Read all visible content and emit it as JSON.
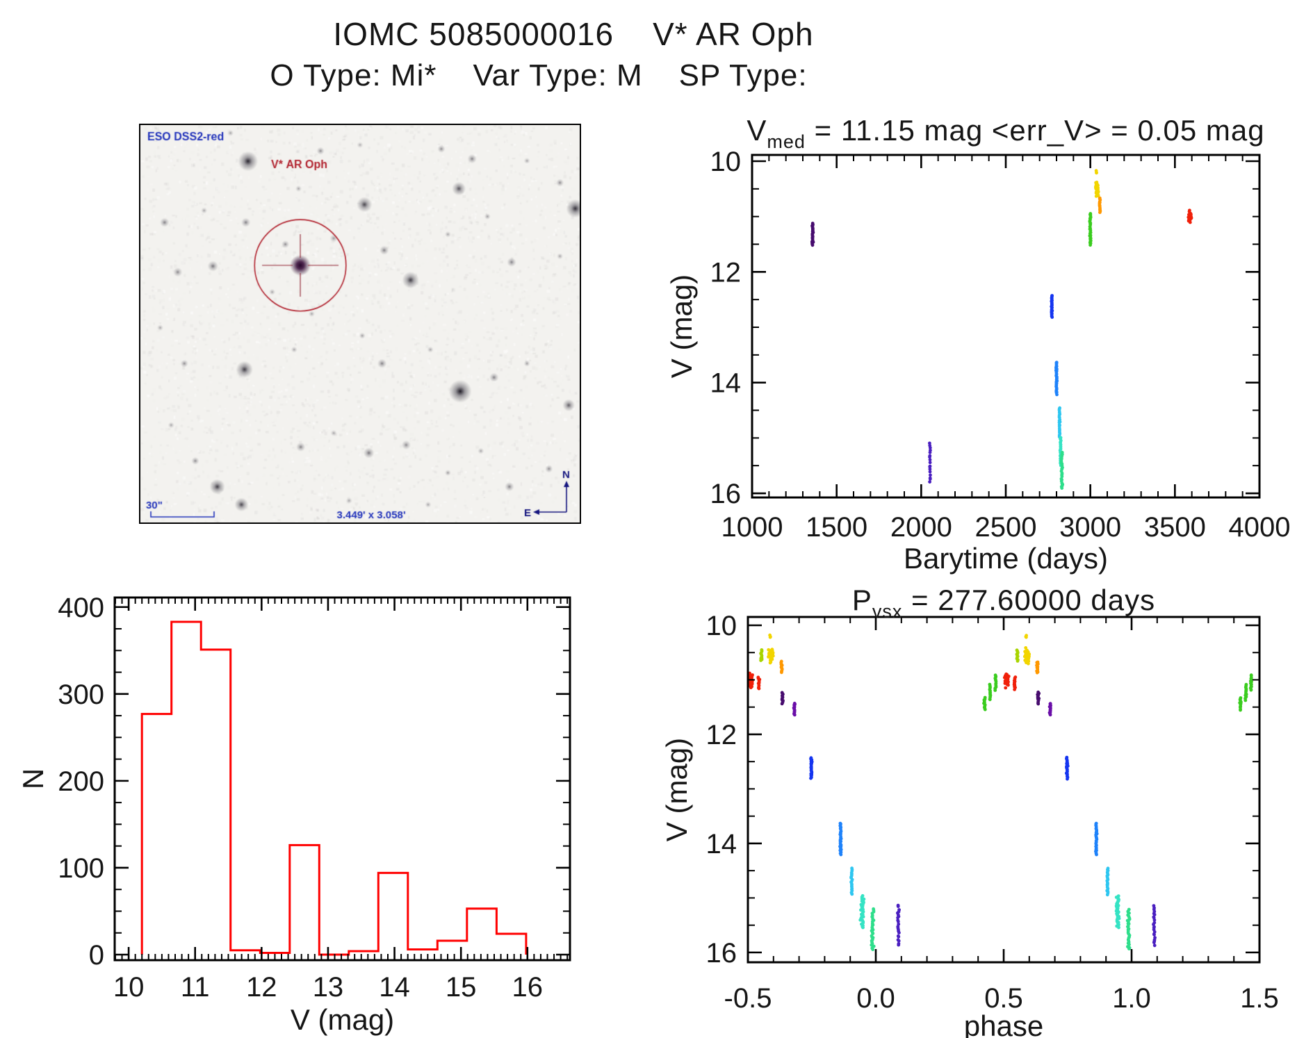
{
  "header": {
    "title_left": "IOMC 5085000016",
    "title_right": "V* AR Oph",
    "subtitle_segments": [
      "O Type: Mi*",
      "Var Type: M",
      "SP Type:"
    ]
  },
  "sky_image": {
    "survey_label": "ESO DSS2-red",
    "target_label": "V* AR Oph",
    "scale_label": "30\"",
    "fov_label": "3.449' x 3.058'",
    "compass_north": "N",
    "compass_east": "E",
    "annotation_blue": "#2233BB",
    "annotation_red": "#B22430",
    "compass_navy": "#15157F",
    "circle": {
      "fx": 0.364,
      "fy": 0.353,
      "fr_of_height": 0.115
    },
    "stars": [
      [
        0.245,
        0.091,
        6.5,
        0.95
      ],
      [
        0.205,
        0.02,
        2,
        0.4
      ],
      [
        0.41,
        0.065,
        2.5,
        0.5
      ],
      [
        0.5,
        0.05,
        2,
        0.35
      ],
      [
        0.685,
        0.06,
        2.5,
        0.5
      ],
      [
        0.755,
        0.085,
        3,
        0.55
      ],
      [
        0.725,
        0.16,
        4.5,
        0.75
      ],
      [
        0.88,
        0.09,
        2,
        0.4
      ],
      [
        0.955,
        0.145,
        2.5,
        0.5
      ],
      [
        0.99,
        0.21,
        6,
        0.9
      ],
      [
        0.055,
        0.245,
        3,
        0.55
      ],
      [
        0.085,
        0.37,
        3,
        0.5
      ],
      [
        0.145,
        0.215,
        2,
        0.4
      ],
      [
        0.165,
        0.355,
        3.5,
        0.6
      ],
      [
        0.24,
        0.245,
        3,
        0.55
      ],
      [
        0.51,
        0.2,
        5,
        0.8
      ],
      [
        0.555,
        0.315,
        3,
        0.55
      ],
      [
        0.615,
        0.39,
        5.5,
        0.85
      ],
      [
        0.7,
        0.275,
        2,
        0.4
      ],
      [
        0.79,
        0.23,
        2,
        0.45
      ],
      [
        0.845,
        0.345,
        3,
        0.55
      ],
      [
        0.955,
        0.33,
        2,
        0.4
      ],
      [
        0.36,
        0.16,
        2,
        0.4
      ],
      [
        0.44,
        0.285,
        2.5,
        0.45
      ],
      [
        0.33,
        0.3,
        2.5,
        0.5
      ],
      [
        0.3,
        0.42,
        2,
        0.4
      ],
      [
        0.39,
        0.475,
        2,
        0.4
      ],
      [
        0.045,
        0.51,
        2,
        0.4
      ],
      [
        0.1,
        0.6,
        2.5,
        0.5
      ],
      [
        0.237,
        0.615,
        5.5,
        0.85
      ],
      [
        0.35,
        0.565,
        2,
        0.4
      ],
      [
        0.505,
        0.53,
        2,
        0.45
      ],
      [
        0.55,
        0.6,
        3,
        0.55
      ],
      [
        0.66,
        0.565,
        2,
        0.4
      ],
      [
        0.728,
        0.67,
        7.5,
        1
      ],
      [
        0.805,
        0.635,
        3,
        0.55
      ],
      [
        0.88,
        0.6,
        2,
        0.45
      ],
      [
        0.975,
        0.705,
        4,
        0.7
      ],
      [
        0.07,
        0.755,
        2,
        0.4
      ],
      [
        0.125,
        0.845,
        2.5,
        0.5
      ],
      [
        0.175,
        0.91,
        5,
        0.85
      ],
      [
        0.23,
        0.955,
        4.5,
        0.8
      ],
      [
        0.365,
        0.81,
        3,
        0.55
      ],
      [
        0.44,
        0.775,
        2,
        0.4
      ],
      [
        0.52,
        0.825,
        3.5,
        0.6
      ],
      [
        0.605,
        0.805,
        3,
        0.5
      ],
      [
        0.7,
        0.875,
        2,
        0.45
      ],
      [
        0.775,
        0.82,
        2,
        0.4
      ],
      [
        0.84,
        0.91,
        3,
        0.55
      ],
      [
        0.93,
        0.865,
        2.5,
        0.5
      ],
      [
        0.655,
        0.955,
        2,
        0.4
      ],
      [
        0.475,
        0.945,
        2,
        0.4
      ]
    ]
  },
  "chart_data": [
    {
      "id": "barytime",
      "type": "scatter",
      "title": "V_med = 11.15 mag <err_V> = 0.05 mag",
      "title_parts": {
        "pre": "V",
        "sub": "med",
        "rest": " = 11.15 mag <err_V> = 0.05 mag"
      },
      "xlabel": "Barytime (days)",
      "ylabel": "V (mag)",
      "xlim": [
        1000,
        4000
      ],
      "ylim": [
        10,
        16
      ],
      "y_inverted": true,
      "xticks": [
        1000,
        1500,
        2000,
        2500,
        3000,
        3500,
        4000
      ],
      "xtick_labels": [
        "1000",
        "1500",
        "2000",
        "2500",
        "3000",
        "3500",
        "4000"
      ],
      "yticks": [
        10,
        12,
        14,
        16
      ],
      "ytick_labels": [
        "10",
        "12",
        "14",
        "16"
      ],
      "x_minor": 100,
      "y_minor": 0.5,
      "grid": false,
      "legend": "none",
      "clusters": [
        {
          "x": 1358,
          "xs": 4,
          "v": [
            11.12,
            11.52
          ],
          "n": 26,
          "color": "#470C6E",
          "seed": 1
        },
        {
          "x": 2052,
          "xs": 3,
          "v": [
            15.08,
            15.82
          ],
          "n": 17,
          "color": "#4A1FC0",
          "seed": 2
        },
        {
          "x": 2772,
          "xs": 3,
          "v": [
            12.42,
            12.82
          ],
          "n": 26,
          "color": "#1535F0",
          "seed": 3
        },
        {
          "x": 2800,
          "xs": 3,
          "v": [
            13.62,
            14.22
          ],
          "n": 32,
          "color": "#1E82FA",
          "seed": 4
        },
        {
          "x": 2818,
          "xs": 3,
          "v": [
            14.45,
            14.99
          ],
          "n": 24,
          "color": "#2EC6F0",
          "seed": 5
        },
        {
          "x": 2824,
          "xs": 3,
          "v": [
            14.98,
            15.5
          ],
          "n": 26,
          "color": "#35E3C4",
          "seed": 6
        },
        {
          "x": 2832,
          "xs": 4,
          "v": [
            15.25,
            15.93
          ],
          "n": 26,
          "color": "#2EDE8B",
          "seed": 7
        },
        {
          "x": 3000,
          "xs": 4,
          "v": [
            10.93,
            11.52
          ],
          "n": 30,
          "color": "#3ACC1E",
          "seed": 8
        },
        {
          "x": 3040,
          "xs": 6,
          "v": [
            10.32,
            10.72
          ],
          "n": 38,
          "color": "#F2D500",
          "seed": 9,
          "blob": true
        },
        {
          "x": 3036,
          "xs": 2,
          "v": [
            10.17,
            10.23
          ],
          "n": 3,
          "color": "#F2D500",
          "seed": 10
        },
        {
          "x": 3056,
          "xs": 3,
          "v": [
            10.66,
            10.93
          ],
          "n": 14,
          "color": "#FF9800",
          "seed": 11
        },
        {
          "x": 3590,
          "xs": 7,
          "v": [
            10.88,
            11.12
          ],
          "n": 36,
          "color": "#F0200A",
          "seed": 12,
          "blob": true
        }
      ]
    },
    {
      "id": "hist",
      "type": "bar",
      "title": "",
      "xlabel": "V (mag)",
      "ylabel": "N",
      "xlim": [
        10,
        16
      ],
      "ylim": [
        0,
        400
      ],
      "xticks": [
        10,
        11,
        12,
        13,
        14,
        15,
        16
      ],
      "xtick_labels": [
        "10",
        "11",
        "12",
        "13",
        "14",
        "15",
        "16"
      ],
      "yticks": [
        0,
        100,
        200,
        300,
        400
      ],
      "ytick_labels": [
        "0",
        "100",
        "200",
        "300",
        "400"
      ],
      "x_minor": 0.1,
      "y_minor": 25,
      "grid": false,
      "legend": "none",
      "bin_start": 10.2,
      "bin_width": 0.4446,
      "values": [
        277,
        383,
        351,
        5,
        2,
        126,
        0,
        4,
        94,
        6,
        16,
        53,
        24
      ],
      "color": "#FF0000"
    },
    {
      "id": "phase",
      "type": "scatter",
      "title": "P_vsx = 277.60000 days",
      "title_parts": {
        "pre": "P",
        "sub": "vsx",
        "rest": " = 277.60000 days"
      },
      "xlabel": "phase",
      "ylabel": "V (mag)",
      "xlim": [
        -0.5,
        1.5
      ],
      "ylim": [
        10,
        16
      ],
      "y_inverted": true,
      "xticks": [
        -0.5,
        0.0,
        0.5,
        1.0,
        1.5
      ],
      "xtick_labels": [
        "-0.5",
        "0.0",
        "0.5",
        "1.0",
        "1.5"
      ],
      "yticks": [
        10,
        12,
        14,
        16
      ],
      "ytick_labels": [
        "10",
        "12",
        "14",
        "16"
      ],
      "x_minor": 0.1,
      "y_minor": 0.5,
      "grid": false,
      "legend": "none",
      "fold_copies": [
        0,
        1,
        2
      ],
      "clusters": [
        {
          "x": -0.488,
          "xs": 0.006,
          "v": [
            10.86,
            11.18
          ],
          "n": 40,
          "color": "#F0200A",
          "seed": 21,
          "blob": true
        },
        {
          "x": -0.457,
          "xs": 0.003,
          "v": [
            10.95,
            11.18
          ],
          "n": 12,
          "color": "#F0200A",
          "seed": 22
        },
        {
          "x": -0.447,
          "xs": 0.003,
          "v": [
            10.44,
            10.66
          ],
          "n": 12,
          "color": "#A8D400",
          "seed": 23
        },
        {
          "x": -0.41,
          "xs": 0.007,
          "v": [
            10.38,
            10.72
          ],
          "n": 38,
          "color": "#F2D500",
          "seed": 24,
          "blob": true
        },
        {
          "x": -0.413,
          "xs": 0.002,
          "v": [
            10.18,
            10.23
          ],
          "n": 3,
          "color": "#F2D500",
          "seed": 25
        },
        {
          "x": -0.368,
          "xs": 0.003,
          "v": [
            10.66,
            10.88
          ],
          "n": 12,
          "color": "#FF9800",
          "seed": 26
        },
        {
          "x": -0.365,
          "xs": 0.003,
          "v": [
            11.22,
            11.45
          ],
          "n": 13,
          "color": "#470C6E",
          "seed": 27
        },
        {
          "x": -0.318,
          "xs": 0.003,
          "v": [
            11.42,
            11.65
          ],
          "n": 13,
          "color": "#6A0FA8",
          "seed": 28
        },
        {
          "x": 0.425,
          "xs": 0.003,
          "v": [
            11.32,
            11.56
          ],
          "n": 13,
          "color": "#3ACC1E",
          "seed": 29
        },
        {
          "x": 0.447,
          "xs": 0.003,
          "v": [
            11.08,
            11.38
          ],
          "n": 14,
          "color": "#3ACC1E",
          "seed": 30
        },
        {
          "x": 0.468,
          "xs": 0.003,
          "v": [
            10.9,
            11.2
          ],
          "n": 14,
          "color": "#3ACC1E",
          "seed": 31
        },
        {
          "x": -0.252,
          "xs": 0.003,
          "v": [
            12.42,
            12.82
          ],
          "n": 24,
          "color": "#1535F0",
          "seed": 32
        },
        {
          "x": -0.138,
          "xs": 0.003,
          "v": [
            13.62,
            14.22
          ],
          "n": 30,
          "color": "#1E82FA",
          "seed": 33
        },
        {
          "x": -0.094,
          "xs": 0.003,
          "v": [
            14.45,
            14.95
          ],
          "n": 22,
          "color": "#2EC6F0",
          "seed": 34
        },
        {
          "x": -0.053,
          "xs": 0.008,
          "v": [
            14.95,
            15.55
          ],
          "n": 34,
          "color": "#35E3C4",
          "seed": 35
        },
        {
          "x": -0.012,
          "xs": 0.006,
          "v": [
            15.2,
            15.95
          ],
          "n": 30,
          "color": "#2EDE8B",
          "seed": 36
        },
        {
          "x": 0.088,
          "xs": 0.004,
          "v": [
            15.12,
            15.88
          ],
          "n": 22,
          "color": "#4A1FC0",
          "seed": 37
        }
      ]
    }
  ]
}
